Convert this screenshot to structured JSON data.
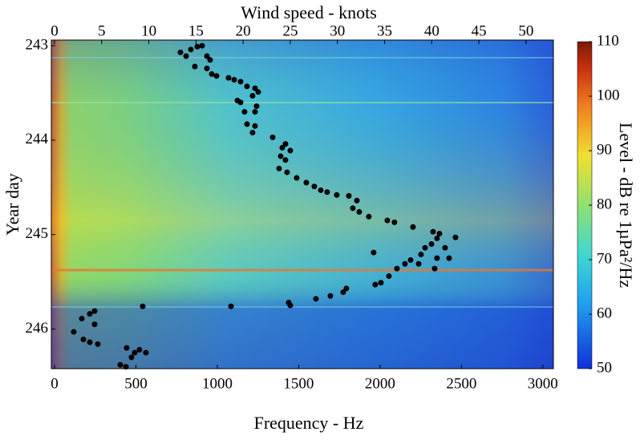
{
  "chart_data": {
    "type": "scatter",
    "x_label": "Wind speed - knots",
    "x2_label": "Frequency - Hz",
    "y_label": "Year day",
    "colorbar_label": "Level - dB re 1µPa²/Hz",
    "xlim": [
      -0.34,
      52.9
    ],
    "xticks": [
      0,
      5,
      10,
      15,
      20,
      25,
      30,
      35,
      40,
      45,
      50
    ],
    "x2lim": [
      -20,
      3065
    ],
    "x2ticks": [
      0,
      500,
      1000,
      1500,
      2000,
      2500,
      3000
    ],
    "ylim": [
      246.42,
      242.94
    ],
    "yticks": [
      243,
      244,
      245,
      246
    ],
    "clim": [
      50,
      110
    ],
    "cticks": [
      50,
      60,
      70,
      80,
      90,
      100,
      110
    ],
    "color": "#000000",
    "x": [
      13.35,
      13.95,
      14.46,
      15.14,
      15.65,
      16.16,
      16.5,
      14.88,
      16.16,
      16.67,
      17.18,
      18.45,
      19.05,
      19.73,
      20.41,
      21.26,
      21.6,
      19.39,
      19.73,
      21.0,
      21.43,
      21.26,
      20.15,
      20.41,
      21.26,
      21.0,
      23.13,
      24.49,
      24.15,
      25.0,
      23.98,
      24.49,
      23.81,
      24.66,
      25.68,
      26.7,
      27.55,
      28.23,
      28.91,
      29.93,
      31.21,
      32.06,
      31.63,
      32.31,
      33.33,
      35.29,
      36.05,
      38.01,
      40.14,
      40.82,
      42.52,
      40.56,
      39.97,
      39.29,
      41.41,
      38.86,
      37.76,
      37.16,
      36.31,
      38.61,
      40.56,
      41.84,
      40.31,
      35.46,
      34.61,
      34.01,
      30.95,
      29.25,
      27.72,
      24.83,
      25.0,
      18.71,
      9.35,
      4.25,
      3.74,
      2.89,
      4.25,
      2.04,
      3.06,
      3.74,
      4.59,
      7.65,
      8.5,
      9.01,
      9.69,
      8.16,
      6.97,
      7.57,
      33.84,
      30.61
    ],
    "values": [
      243.07,
      243.11,
      243.04,
      243.01,
      243.0,
      243.11,
      243.15,
      243.22,
      243.24,
      243.3,
      243.32,
      243.34,
      243.36,
      243.38,
      243.43,
      243.45,
      243.49,
      243.58,
      243.6,
      243.53,
      243.64,
      243.7,
      243.7,
      243.83,
      243.85,
      243.92,
      243.97,
      244.04,
      244.08,
      244.11,
      244.17,
      244.21,
      244.3,
      244.34,
      244.4,
      244.45,
      244.49,
      244.53,
      244.55,
      244.58,
      244.59,
      244.64,
      244.72,
      244.76,
      244.81,
      244.85,
      244.87,
      244.92,
      244.97,
      244.99,
      245.03,
      245.04,
      245.1,
      245.14,
      245.14,
      245.21,
      245.27,
      245.31,
      245.36,
      245.31,
      245.25,
      245.25,
      245.36,
      245.44,
      245.51,
      245.53,
      245.57,
      245.65,
      245.68,
      245.72,
      245.75,
      245.76,
      245.76,
      245.81,
      245.84,
      245.89,
      245.95,
      246.03,
      246.11,
      246.14,
      246.16,
      246.2,
      246.25,
      246.22,
      246.25,
      246.3,
      246.38,
      246.4,
      245.19,
      245.61
    ]
  }
}
